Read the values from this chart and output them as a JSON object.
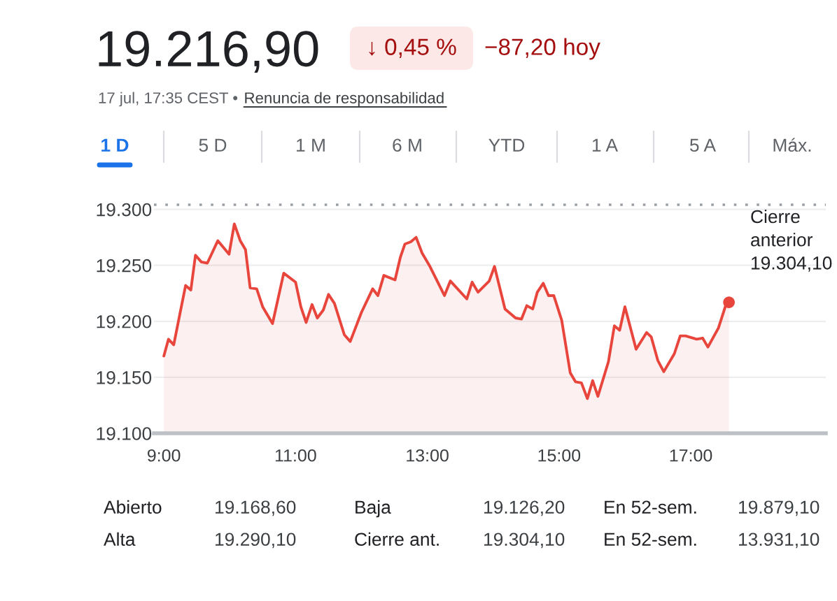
{
  "chart_data": {
    "type": "area",
    "title": "19.216,90",
    "subtitle": "17 jul, 17:35 CEST •",
    "annotations": [
      "↓ 0,45 %",
      "−87,20 hoy",
      "Renuncia de responsabilidad",
      "1 D",
      "5 D",
      "1 M",
      "6 M",
      "YTD",
      "1 A",
      "5 A",
      "Máx.",
      "Abierto",
      "19.168,60",
      "Baja",
      "19.126,20",
      "En 52-sem.",
      "19.879,10",
      "Alta",
      "19.290,10",
      "Cierre ant.",
      "19.304,10",
      "En 52-sem.",
      "13.931,10"
    ],
    "series": [
      {
        "color": "#e8453c",
        "line_style": "solid",
        "x": [
          9.0,
          9.07,
          9.15,
          9.33,
          9.41,
          9.48,
          9.57,
          9.66,
          9.82,
          9.99,
          10.07,
          10.16,
          10.24,
          10.31,
          10.41,
          10.5,
          10.65,
          10.82,
          11.0,
          11.08,
          11.16,
          11.25,
          11.33,
          11.42,
          11.5,
          11.59,
          11.74,
          11.83,
          12.0,
          12.17,
          12.25,
          12.34,
          12.51,
          12.59,
          12.66,
          12.75,
          12.83,
          12.92,
          13.04,
          13.26,
          13.35,
          13.6,
          13.68,
          13.77,
          13.94,
          14.02,
          14.18,
          14.34,
          14.43,
          14.51,
          14.6,
          14.67,
          14.76,
          14.84,
          14.92,
          15.04,
          15.17,
          15.25,
          15.34,
          15.43,
          15.51,
          15.59,
          15.75,
          15.84,
          15.92,
          16.0,
          16.17,
          16.33,
          16.4,
          16.5,
          16.59,
          16.75,
          16.84,
          16.92,
          17.09,
          17.18,
          17.26,
          17.42,
          17.54,
          17.58
        ],
        "values": [
          19169,
          19184,
          19179,
          19232,
          19228,
          19259,
          19253,
          19252,
          19272,
          19260,
          19287,
          19272,
          19264,
          19230,
          19229,
          19213,
          19198,
          19243,
          19235,
          19213,
          19199,
          19215,
          19203,
          19210,
          19224,
          19216,
          19188,
          19182,
          19208,
          19229,
          19223,
          19241,
          19237,
          19257,
          19269,
          19271,
          19275,
          19261,
          19249,
          19223,
          19236,
          19220,
          19235,
          19226,
          19236,
          19249,
          19211,
          19203,
          19202,
          19214,
          19211,
          19226,
          19234,
          19223,
          19223,
          19201,
          19154,
          19146,
          19145,
          19131,
          19147,
          19133,
          19164,
          19196,
          19192,
          19213,
          19175,
          19190,
          19186,
          19165,
          19155,
          19171,
          19187,
          19187,
          19184,
          19185,
          19177,
          19194,
          19216,
          19217
        ]
      },
      {
        "type": "scatter",
        "color": "#e8453c",
        "marker": "circle",
        "x": [
          17.58
        ],
        "values": [
          19217
        ]
      }
    ],
    "xlim": [
      8.85,
      19.05
    ],
    "xticks": [
      {
        "value": 9,
        "label": "9:00"
      },
      {
        "value": 11,
        "label": "11:00"
      },
      {
        "value": 13,
        "label": "13:00"
      },
      {
        "value": 15,
        "label": "15:00"
      },
      {
        "value": 17,
        "label": "17:00"
      }
    ],
    "ylim": [
      19100,
      19304.1
    ],
    "yticks": [
      {
        "value": 19100,
        "label": "19.100"
      },
      {
        "value": 19150,
        "label": "19.150"
      },
      {
        "value": 19200,
        "label": "19.200"
      },
      {
        "value": 19250,
        "label": "19.250"
      },
      {
        "value": 19300,
        "label": "19.300"
      }
    ],
    "grid": "y",
    "ref_lines": [
      {
        "axis": "y",
        "value": 19304.1,
        "label": "Cierre\nanterior\n19.304,10",
        "color": "#9aa0a6",
        "line_style": "dotted"
      }
    ]
  }
}
